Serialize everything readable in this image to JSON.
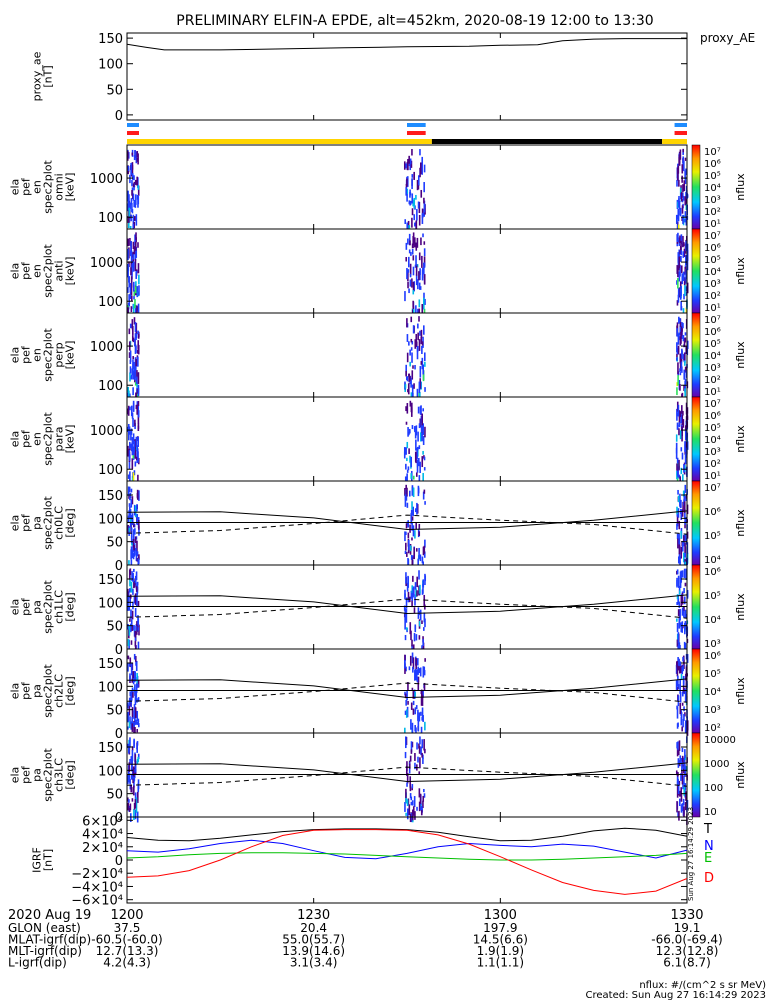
{
  "title": "PRELIMINARY ELFIN-A EPDE, alt=452km, 2020-08-19 12:00 to 13:30",
  "colors": {
    "sci_blue": "#1e8cff",
    "sci_red": "#ff1a1a",
    "bar_yellow": "#ffd400",
    "bar_black": "#000000",
    "spec_purple": "#4b0082",
    "spec_blue": "#1f3cff",
    "spec_cyan": "#00b8e6",
    "spec_green": "#2ee05a",
    "spec_yellow": "#f0f000",
    "gsm_T": "#000000",
    "gsm_N": "#0000ff",
    "gsm_E": "#00c000",
    "gsm_D": "#ff0000"
  },
  "chart_data": [
    {
      "type": "line",
      "panel": "proxy_ae",
      "ylabel": [
        "proxy_ae",
        "[nT]"
      ],
      "right_label": "proxy_AE",
      "y_ticks": [
        "150",
        "100",
        "50",
        "0"
      ],
      "ylim": [
        -10,
        160
      ],
      "x": [
        0,
        3,
        6,
        15,
        25,
        35,
        45,
        55,
        60,
        66,
        70,
        75,
        80,
        85,
        90
      ],
      "series": [
        {
          "values": [
            138,
            132,
            127,
            127,
            129,
            131,
            133,
            134,
            136,
            137,
            145,
            148,
            149,
            149,
            149
          ]
        }
      ]
    },
    {
      "type": "bar",
      "panel": "science_zone_indicators",
      "x_minutes": [
        [
          0,
          1
        ],
        [
          45,
          48
        ],
        [
          88,
          90
        ]
      ],
      "bar_colors": [
        "sci_blue",
        "sci_red"
      ],
      "state_bar": [
        {
          "from": 0,
          "to": 49,
          "color": "bar_yellow"
        },
        {
          "from": 49,
          "to": 86,
          "color": "bar_black"
        },
        {
          "from": 86,
          "to": 90,
          "color": "bar_yellow"
        }
      ]
    },
    {
      "type": "heatmap",
      "panel": "ela_pef_en_spec2plot_omni",
      "ylabel": [
        "ela",
        "pef",
        "en",
        "spec2plot",
        "omni",
        "[keV]"
      ],
      "y_ticks": [
        "1000",
        "100"
      ],
      "y_scale": "log",
      "ylim": [
        50,
        7000
      ],
      "colorbar_label": "nflux",
      "colorbar_ticks": [
        "10⁷",
        "10⁶",
        "10⁵",
        "10⁴",
        "10³",
        "10²",
        "10¹"
      ]
    },
    {
      "type": "heatmap",
      "panel": "ela_pef_en_spec2plot_anti",
      "ylabel": [
        "ela",
        "pef",
        "en",
        "spec2plot",
        "anti",
        "[keV]"
      ],
      "y_ticks": [
        "1000",
        "100"
      ],
      "y_scale": "log",
      "ylim": [
        50,
        7000
      ],
      "colorbar_label": "nflux",
      "colorbar_ticks": [
        "10⁷",
        "10⁶",
        "10⁵",
        "10⁴",
        "10³",
        "10²",
        "10¹"
      ]
    },
    {
      "type": "heatmap",
      "panel": "ela_pef_en_spec2plot_perp",
      "ylabel": [
        "ela",
        "pef",
        "en",
        "spec2plot",
        "perp",
        "[keV]"
      ],
      "y_ticks": [
        "1000",
        "100"
      ],
      "y_scale": "log",
      "ylim": [
        50,
        7000
      ],
      "colorbar_label": "nflux",
      "colorbar_ticks": [
        "10⁷",
        "10⁶",
        "10⁵",
        "10⁴",
        "10³",
        "10²",
        "10¹"
      ]
    },
    {
      "type": "heatmap",
      "panel": "ela_pef_en_spec2plot_para",
      "ylabel": [
        "ela",
        "pef",
        "en",
        "spec2plot",
        "para",
        "[keV]"
      ],
      "y_ticks": [
        "1000",
        "100"
      ],
      "y_scale": "log",
      "ylim": [
        50,
        7000
      ],
      "colorbar_label": "nflux",
      "colorbar_ticks": [
        "10⁷",
        "10⁶",
        "10⁵",
        "10⁴",
        "10³",
        "10²",
        "10¹"
      ]
    },
    {
      "type": "heatmap",
      "panel": "ela_pef_pa_spec2plot_ch0LC",
      "ylabel": [
        "ela",
        "pef",
        "pa",
        "spec2plot",
        "ch0LC",
        "[deg]"
      ],
      "y_ticks": [
        "150",
        "100",
        "50",
        "0"
      ],
      "ylim": [
        0,
        180
      ],
      "colorbar_label": "nflux",
      "colorbar_ticks": [
        "10⁷",
        "10⁶",
        "10⁵",
        "10⁴"
      ]
    },
    {
      "type": "heatmap",
      "panel": "ela_pef_pa_spec2plot_ch1LC",
      "ylabel": [
        "ela",
        "pef",
        "pa",
        "spec2plot",
        "ch1LC",
        "[deg]"
      ],
      "y_ticks": [
        "150",
        "100",
        "50",
        "0"
      ],
      "ylim": [
        0,
        180
      ],
      "colorbar_label": "nflux",
      "colorbar_ticks": [
        "10⁶",
        "10⁵",
        "10⁴",
        "10³"
      ]
    },
    {
      "type": "heatmap",
      "panel": "ela_pef_pa_spec2plot_ch2LC",
      "ylabel": [
        "ela",
        "pef",
        "pa",
        "spec2plot",
        "ch2LC",
        "[deg]"
      ],
      "y_ticks": [
        "150",
        "100",
        "50",
        "0"
      ],
      "ylim": [
        0,
        180
      ],
      "colorbar_label": "nflux",
      "colorbar_ticks": [
        "10⁶",
        "10⁵",
        "10⁴",
        "10³",
        "10²"
      ]
    },
    {
      "type": "heatmap",
      "panel": "ela_pef_pa_spec2plot_ch3LC",
      "ylabel": [
        "ela",
        "pef",
        "pa",
        "spec2plot",
        "ch3LC",
        "[deg]"
      ],
      "y_ticks": [
        "150",
        "100",
        "50",
        "0"
      ],
      "ylim": [
        0,
        180
      ],
      "colorbar_label": "nflux",
      "colorbar_ticks": [
        "10000",
        "1000",
        "100",
        "10"
      ]
    },
    {
      "type": "line",
      "panel": "igrf",
      "ylabel": [
        "IGRF",
        "[nT]"
      ],
      "y_ticks": [
        "6×10⁴",
        "4×10⁴",
        "2×10⁴",
        "0",
        "−2×10⁴",
        "−4×10⁴",
        "−6×10⁴"
      ],
      "ylim": [
        -65000,
        65000
      ],
      "legend": [
        "T",
        "N",
        "E",
        "D"
      ],
      "side_text": "Sun Aug 27 16:14:29 2023",
      "x": [
        0,
        5,
        10,
        15,
        20,
        25,
        30,
        35,
        40,
        45,
        50,
        55,
        60,
        65,
        70,
        75,
        80,
        85,
        90
      ],
      "series": [
        {
          "name": "T",
          "values": [
            34000,
            30000,
            29000,
            33000,
            38000,
            43000,
            46000,
            47000,
            47000,
            46000,
            42000,
            35000,
            29000,
            30000,
            36000,
            44000,
            48000,
            45000,
            36000
          ]
        },
        {
          "name": "N",
          "values": [
            14000,
            12000,
            17000,
            25000,
            30000,
            25000,
            14000,
            4000,
            2000,
            10000,
            20000,
            25000,
            22000,
            20000,
            24000,
            21000,
            12000,
            3000,
            15000
          ]
        },
        {
          "name": "E",
          "values": [
            3000,
            5000,
            8000,
            10000,
            11000,
            11000,
            10000,
            9000,
            7000,
            5000,
            3000,
            1000,
            0,
            0,
            1000,
            3000,
            5000,
            7000,
            10000
          ]
        },
        {
          "name": "D",
          "values": [
            -26000,
            -24000,
            -16000,
            0,
            20000,
            37000,
            45000,
            46000,
            46000,
            45000,
            38000,
            24000,
            5000,
            -15000,
            -34000,
            -46000,
            -52000,
            -47000,
            -28000
          ]
        }
      ]
    }
  ],
  "x_axis": {
    "ticks": [
      "1200",
      "1230",
      "1300",
      "1330"
    ],
    "date_label": "2020 Aug 19",
    "rows": [
      {
        "label": "GLON (east)",
        "values": [
          "37.5",
          "20.4",
          "197.9",
          "19.1"
        ]
      },
      {
        "label": "MLAT-igrf(dip)",
        "values": [
          "-60.5(-60.0)",
          "55.0(55.7)",
          "14.5(6.6)",
          "-66.0(-69.4)"
        ]
      },
      {
        "label": "MLT-igrf(dip)",
        "values": [
          "12.7(13.3)",
          "13.9(14.6)",
          "1.9(1.9)",
          "12.3(12.8)"
        ]
      },
      {
        "label": "L-igrf(dip)",
        "values": [
          "4.2(4.3)",
          "3.1(3.4)",
          "1.1(1.1)",
          "6.1(8.7)"
        ]
      }
    ]
  },
  "footer": {
    "units": "nflux: #/(cm^2 s sr MeV)",
    "created": "Created: Sun Aug 27 16:14:29 2023"
  }
}
